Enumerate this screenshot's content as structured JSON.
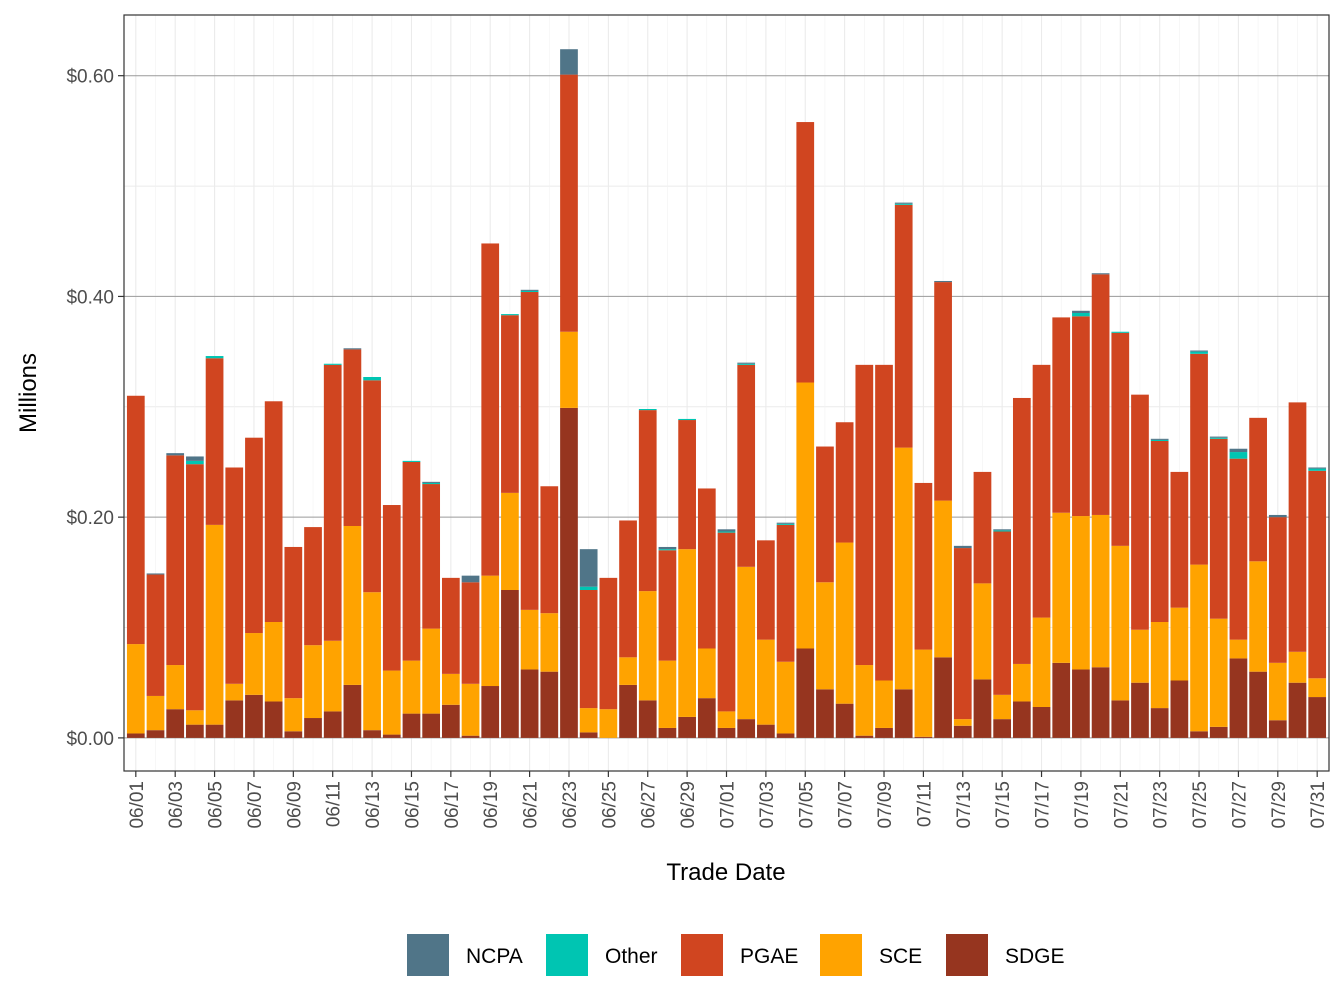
{
  "chart_data": {
    "type": "bar",
    "stacked": true,
    "title": "",
    "xlabel": "Trade Date",
    "ylabel": "Millions",
    "ylim": [
      -0.03,
      0.655
    ],
    "yticks": [
      0.0,
      0.2,
      0.4,
      0.6
    ],
    "ytick_labels": [
      "$0.00",
      "$0.20",
      "$0.40",
      "$0.60"
    ],
    "grid": true,
    "legend_position": "bottom",
    "categories": [
      "06/01",
      "06/02",
      "06/03",
      "06/04",
      "06/05",
      "06/06",
      "06/07",
      "06/08",
      "06/09",
      "06/10",
      "06/11",
      "06/12",
      "06/13",
      "06/14",
      "06/15",
      "06/16",
      "06/17",
      "06/18",
      "06/19",
      "06/20",
      "06/21",
      "06/22",
      "06/23",
      "06/24",
      "06/25",
      "06/26",
      "06/27",
      "06/28",
      "06/29",
      "06/30",
      "07/01",
      "07/02",
      "07/03",
      "07/04",
      "07/05",
      "07/06",
      "07/07",
      "07/08",
      "07/09",
      "07/10",
      "07/11",
      "07/12",
      "07/13",
      "07/14",
      "07/15",
      "07/16",
      "07/17",
      "07/18",
      "07/19",
      "07/20",
      "07/21",
      "07/22",
      "07/23",
      "07/24",
      "07/25",
      "07/26",
      "07/27",
      "07/28",
      "07/29",
      "07/30",
      "07/31"
    ],
    "xtick_labels": [
      "06/01",
      "06/03",
      "06/05",
      "06/07",
      "06/09",
      "06/11",
      "06/13",
      "06/15",
      "06/17",
      "06/19",
      "06/21",
      "06/23",
      "06/25",
      "06/27",
      "06/29",
      "07/01",
      "07/03",
      "07/05",
      "07/07",
      "07/09",
      "07/11",
      "07/13",
      "07/15",
      "07/17",
      "07/19",
      "07/21",
      "07/23",
      "07/25",
      "07/27",
      "07/29",
      "07/31"
    ],
    "stack_order": [
      "SDGE",
      "SCE",
      "PGAE",
      "Other",
      "NCPA"
    ],
    "series": [
      {
        "name": "SDGE",
        "color": "#96351f",
        "values": [
          0.004,
          0.007,
          0.026,
          0.012,
          0.012,
          0.034,
          0.039,
          0.033,
          0.006,
          0.018,
          0.024,
          0.048,
          0.007,
          0.003,
          0.022,
          0.022,
          0.03,
          0.002,
          0.047,
          0.134,
          0.062,
          0.06,
          0.299,
          0.005,
          0.0,
          0.048,
          0.034,
          0.009,
          0.019,
          0.036,
          0.009,
          0.017,
          0.012,
          0.004,
          0.081,
          0.044,
          0.031,
          0.002,
          0.009,
          0.044,
          0.001,
          0.073,
          0.011,
          0.053,
          0.017,
          0.033,
          0.028,
          0.068,
          0.062,
          0.064,
          0.034,
          0.05,
          0.027,
          0.052,
          0.006,
          0.01,
          0.072,
          0.06,
          0.016,
          0.05,
          0.037
        ]
      },
      {
        "name": "SCE",
        "color": "#ffa300",
        "values": [
          0.081,
          0.031,
          0.04,
          0.013,
          0.181,
          0.015,
          0.056,
          0.072,
          0.03,
          0.066,
          0.064,
          0.144,
          0.125,
          0.058,
          0.048,
          0.077,
          0.028,
          0.047,
          0.1,
          0.088,
          0.054,
          0.053,
          0.069,
          0.022,
          0.026,
          0.025,
          0.099,
          0.061,
          0.152,
          0.045,
          0.015,
          0.138,
          0.077,
          0.065,
          0.241,
          0.097,
          0.146,
          0.064,
          0.043,
          0.219,
          0.079,
          0.142,
          0.006,
          0.087,
          0.022,
          0.034,
          0.081,
          0.136,
          0.139,
          0.138,
          0.14,
          0.048,
          0.078,
          0.066,
          0.151,
          0.098,
          0.017,
          0.1,
          0.052,
          0.028,
          0.017
        ]
      },
      {
        "name": "PGAE",
        "color": "#d04520",
        "values": [
          0.225,
          0.11,
          0.19,
          0.223,
          0.151,
          0.196,
          0.177,
          0.2,
          0.137,
          0.107,
          0.25,
          0.16,
          0.192,
          0.15,
          0.18,
          0.131,
          0.087,
          0.092,
          0.301,
          0.161,
          0.288,
          0.115,
          0.233,
          0.107,
          0.119,
          0.124,
          0.164,
          0.1,
          0.117,
          0.145,
          0.162,
          0.183,
          0.09,
          0.124,
          0.236,
          0.123,
          0.109,
          0.272,
          0.286,
          0.22,
          0.151,
          0.198,
          0.155,
          0.101,
          0.148,
          0.241,
          0.229,
          0.177,
          0.181,
          0.218,
          0.193,
          0.213,
          0.164,
          0.123,
          0.191,
          0.163,
          0.164,
          0.13,
          0.132,
          0.226,
          0.188
        ]
      },
      {
        "name": "Other",
        "color": "#00c5b2",
        "values": [
          0.0,
          0.0,
          0.0,
          0.003,
          0.002,
          0.0,
          0.0,
          0.0,
          0.0,
          0.0,
          0.001,
          0.0,
          0.003,
          0.0,
          0.001,
          0.001,
          0.0,
          0.0,
          0.0,
          0.001,
          0.001,
          0.0,
          0.0,
          0.003,
          0.0,
          0.0,
          0.001,
          0.001,
          0.001,
          0.0,
          0.001,
          0.001,
          0.0,
          0.001,
          0.0,
          0.0,
          0.0,
          0.0,
          0.0,
          0.001,
          0.0,
          0.0,
          0.0,
          0.0,
          0.001,
          0.0,
          0.0,
          0.0,
          0.003,
          0.0,
          0.001,
          0.0,
          0.001,
          0.0,
          0.002,
          0.001,
          0.006,
          0.0,
          0.0,
          0.0,
          0.002
        ]
      },
      {
        "name": "NCPA",
        "color": "#507588",
        "values": [
          0.0,
          0.001,
          0.002,
          0.004,
          0.0,
          0.0,
          0.0,
          0.0,
          0.0,
          0.0,
          0.0,
          0.001,
          0.0,
          0.0,
          0.0,
          0.001,
          0.0,
          0.006,
          0.0,
          0.0,
          0.001,
          0.0,
          0.023,
          0.034,
          0.0,
          0.0,
          0.0,
          0.002,
          0.0,
          0.0,
          0.002,
          0.001,
          0.0,
          0.001,
          0.0,
          0.0,
          0.0,
          0.0,
          0.0,
          0.001,
          0.0,
          0.001,
          0.002,
          0.0,
          0.001,
          0.0,
          0.0,
          0.0,
          0.002,
          0.001,
          0.0,
          0.0,
          0.001,
          0.0,
          0.001,
          0.001,
          0.003,
          0.0,
          0.002,
          0.0,
          0.001
        ]
      }
    ]
  }
}
